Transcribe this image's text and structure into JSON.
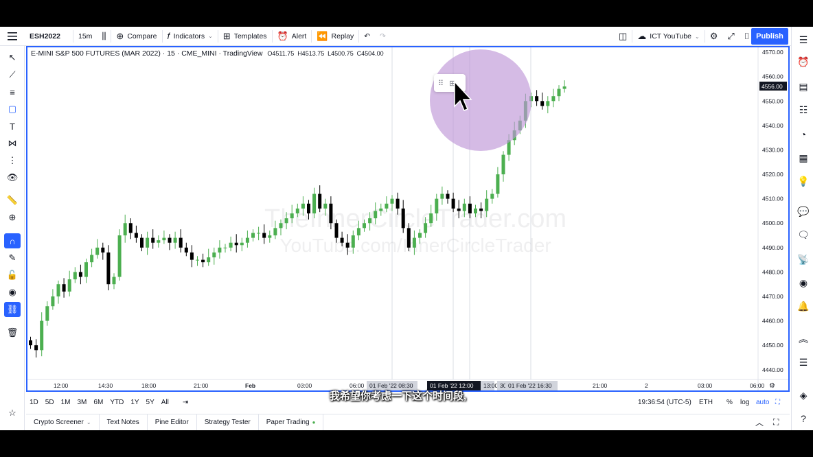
{
  "toolbar": {
    "menu_icon": "hamburger-menu-icon",
    "symbol": "ESH2022",
    "interval": "15m",
    "compare": "Compare",
    "indicators": "Indicators",
    "templates": "Templates",
    "alert": "Alert",
    "replay": "Replay",
    "layout_name": "ICT YouTube",
    "publish": "Publish"
  },
  "legend": {
    "title": "E-MINI S&P 500 FUTURES (MAR 2022) · 15 · CME_MINI · TradingView",
    "open": "O4511.75",
    "high": "H4513.75",
    "low": "L4500.75",
    "close": "C4504.00"
  },
  "watermark": {
    "line1": "TheInnerCircleTrader.com",
    "line2": "YouTube.com/InnerCircleTrader"
  },
  "price_axis": {
    "labels": [
      "4570.00",
      "4560.00",
      "4550.00",
      "4540.00",
      "4530.00",
      "4520.00",
      "4510.00",
      "4500.00",
      "4490.00",
      "4480.00",
      "4470.00",
      "4460.00",
      "4450.00",
      "4440.00"
    ],
    "current": "4556.00"
  },
  "time_axis": {
    "labels": [
      "12:00",
      "14:30",
      "18:00",
      "21:00",
      "Feb",
      "03:00",
      "06:00",
      "21:00",
      "2",
      "03:00",
      "06:00"
    ],
    "highlights": [
      "01 Feb '22  08:30",
      "01 Feb '22  12:00",
      "13:00",
      "30",
      "01 Feb '22  16:30"
    ]
  },
  "range": {
    "buttons": [
      "1D",
      "5D",
      "1M",
      "3M",
      "6M",
      "YTD",
      "1Y",
      "5Y",
      "All"
    ],
    "clock": "19:36:54 (UTC-5)",
    "session": "ETH",
    "percent": "%",
    "log": "log",
    "auto": "auto"
  },
  "bottom_tabs": [
    "Crypto Screener",
    "Text Notes",
    "Pine Editor",
    "Strategy Tester",
    "Paper Trading"
  ],
  "subtitle": "我希望你考虑一下这个时间段,",
  "colors": {
    "up": "#4caf50",
    "down": "#000000",
    "accent": "#2962ff",
    "halo": "#be96d7"
  },
  "chart_data": {
    "type": "candlestick",
    "symbol": "ESH2022",
    "ylim": [
      4436,
      4572
    ],
    "last_price": 4556.0,
    "close_series": [
      4450,
      4448,
      4460,
      4466,
      4470,
      4475,
      4472,
      4477,
      4480,
      4478,
      4484,
      4487,
      4490,
      4488,
      4475,
      4478,
      4495,
      4500,
      4496,
      4494,
      4490,
      4494,
      4492,
      4493,
      4494,
      4492,
      4494,
      4490,
      4488,
      4485,
      4485,
      4484,
      4486,
      4488,
      4490,
      4490,
      4492,
      4491,
      4492,
      4494,
      4496,
      4496,
      4494,
      4495,
      4498,
      4500,
      4502,
      4504,
      4506,
      4508,
      4504,
      4512,
      4506,
      4508,
      4500,
      4494,
      4492,
      4490,
      4495,
      4498,
      4500,
      4502,
      4505,
      4506,
      4508,
      4510,
      4506,
      4498,
      4490,
      4494,
      4496,
      4500,
      4504,
      4510,
      4512,
      4510,
      4506,
      4505,
      4508,
      4504,
      4506,
      4505,
      4510,
      4512,
      4520,
      4528,
      4534,
      4538,
      4542,
      4550,
      4552,
      4550,
      4548,
      4550,
      4552,
      4555,
      4556
    ]
  }
}
